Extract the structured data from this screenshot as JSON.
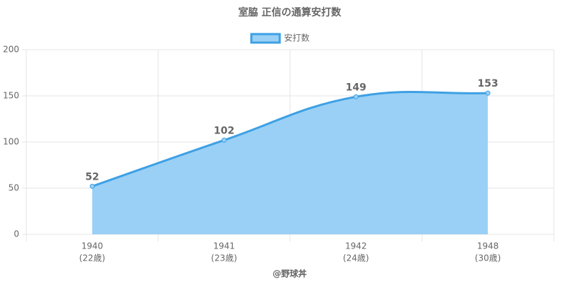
{
  "chart_data": {
    "type": "area",
    "title": "室脇 正信の通算安打数",
    "categories": [
      "1940",
      "1941",
      "1942",
      "1948"
    ],
    "category_sublabels": [
      "(22歳)",
      "(23歳)",
      "(24歳)",
      "(30歳)"
    ],
    "series": [
      {
        "name": "安打数",
        "color": "#3ea0e4",
        "fill": "#9ad0f5",
        "values": [
          52,
          102,
          149,
          153
        ]
      }
    ],
    "ylim": [
      0,
      200
    ],
    "yticks": [
      0,
      50,
      100,
      150,
      200
    ],
    "grid": true,
    "legend": "top",
    "footer": "@野球丼"
  }
}
